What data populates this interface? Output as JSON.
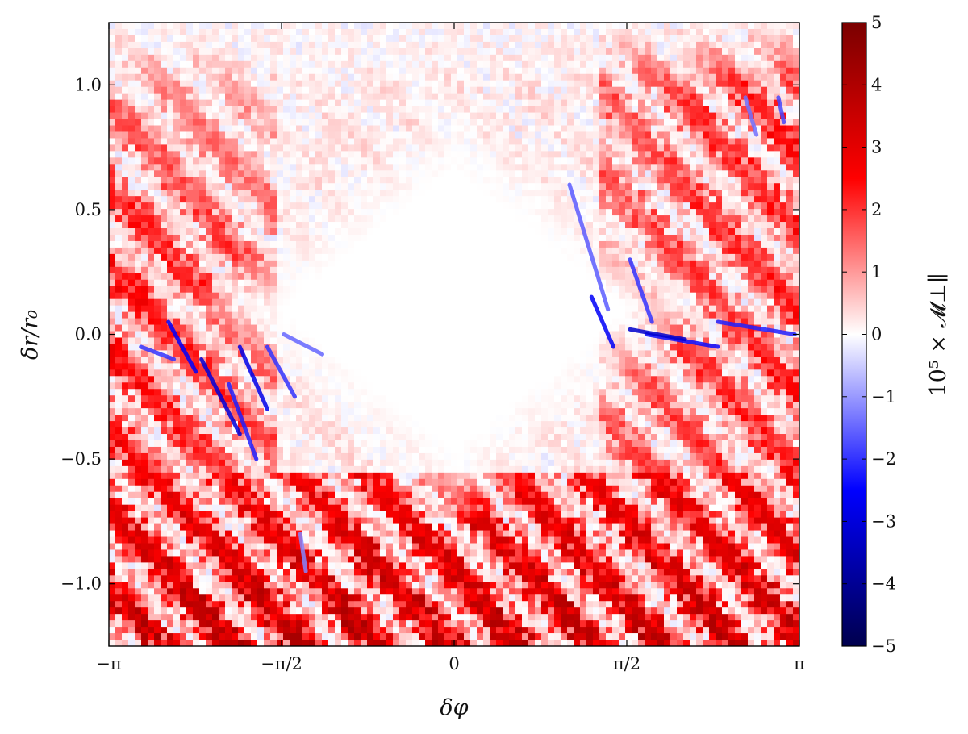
{
  "chart_data": {
    "type": "heatmap",
    "title": "",
    "xlabel": "δφ",
    "ylabel": "δr/r₀",
    "xlim": [
      -3.14159,
      3.14159
    ],
    "ylim": [
      -1.25,
      1.25
    ],
    "x_ticks": [
      {
        "value": -3.14159,
        "label": "−π"
      },
      {
        "value": -1.5708,
        "label": "−π/2"
      },
      {
        "value": 0,
        "label": "0"
      },
      {
        "value": 1.5708,
        "label": "π/2"
      },
      {
        "value": 3.14159,
        "label": "π"
      }
    ],
    "y_ticks": [
      {
        "value": 1.0,
        "label": "1.0"
      },
      {
        "value": 0.5,
        "label": "0.5"
      },
      {
        "value": 0.0,
        "label": "0.0"
      },
      {
        "value": -0.5,
        "label": "−0.5"
      },
      {
        "value": -1.0,
        "label": "−1.0"
      }
    ],
    "colorbar": {
      "label": "10⁵ × 𝓜⊥∥",
      "range": [
        -5,
        5
      ],
      "colormap": "seismic",
      "colors": {
        "neg_end": "#00004d",
        "neg_mid": "#0000ff",
        "zero": "#ffffff",
        "pos_mid": "#ff0000",
        "pos_end": "#800000"
      },
      "ticks": [
        {
          "value": 5,
          "label": "5"
        },
        {
          "value": 4,
          "label": "4"
        },
        {
          "value": 3,
          "label": "3"
        },
        {
          "value": 2,
          "label": "2"
        },
        {
          "value": 1,
          "label": "1"
        },
        {
          "value": 0,
          "label": "0"
        },
        {
          "value": -1,
          "label": "−1"
        },
        {
          "value": -2,
          "label": "−2"
        },
        {
          "value": -3,
          "label": "−3"
        },
        {
          "value": -4,
          "label": "−4"
        },
        {
          "value": -5,
          "label": "−5"
        }
      ]
    },
    "features": [
      {
        "region": "central diamond-shaped quiet zone around δφ≈0, δr/r₀ from ≈-0.6 to ≈0.8",
        "value": 0
      },
      {
        "region": "lower band δr/r₀ < -0.6 across all δφ",
        "value_range": [
          1,
          5
        ]
      },
      {
        "region": "right side δφ > π/2, δr/r₀ from 0.0 to 1.0",
        "value_range": [
          0.5,
          3.5
        ]
      },
      {
        "region": "blue streaks near δφ≈-2.5 to -1.6, δr/r₀≈0 to -0.5",
        "value_range": [
          -3,
          -1
        ]
      },
      {
        "region": "thin blue ridge along δr/r₀≈0 for δφ > 1.5",
        "value_range": [
          -3,
          -1
        ]
      }
    ]
  }
}
